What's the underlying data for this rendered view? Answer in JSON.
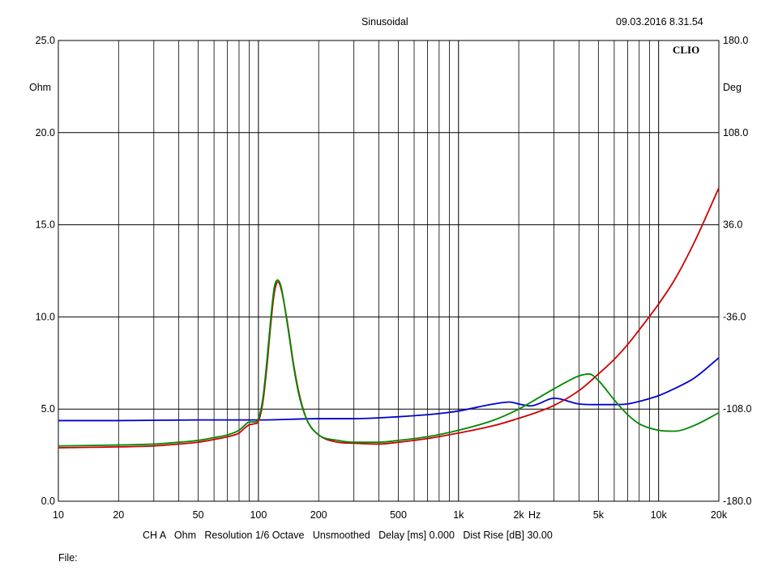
{
  "header": {
    "title": "Sinusoidal",
    "timestamp": "09.03.2016 8.31.54",
    "logo": "CLIO"
  },
  "footer": {
    "info": "CH A   Ohm   Resolution 1/6 Octave   Unsmoothed   Delay [ms] 0.000   Dist Rise [dB] 30.00",
    "file_label": "File:"
  },
  "chart_data": {
    "type": "line",
    "xscale": "log",
    "xlim": [
      10,
      20000
    ],
    "ylim_left": [
      0,
      25
    ],
    "ylim_right": [
      -180,
      180
    ],
    "grid": true,
    "x_ticks": [
      {
        "v": 10,
        "label": "10"
      },
      {
        "v": 20,
        "label": "20"
      },
      {
        "v": 50,
        "label": "50"
      },
      {
        "v": 100,
        "label": "100"
      },
      {
        "v": 200,
        "label": "200"
      },
      {
        "v": 500,
        "label": "500"
      },
      {
        "v": 1000,
        "label": "1k"
      },
      {
        "v": 2000,
        "label": "2k"
      },
      {
        "v": 5000,
        "label": "5k"
      },
      {
        "v": 10000,
        "label": "10k"
      },
      {
        "v": 20000,
        "label": "20k"
      }
    ],
    "x_unit": "Hz",
    "y_left_ticks": [
      {
        "v": 0,
        "label": "0.0"
      },
      {
        "v": 5,
        "label": "5.0"
      },
      {
        "v": 10,
        "label": "10.0"
      },
      {
        "v": 15,
        "label": "15.0"
      },
      {
        "v": 20,
        "label": "20.0"
      },
      {
        "v": 25,
        "label": "25.0"
      }
    ],
    "y_left_unit": "Ohm",
    "y_right_ticks": [
      {
        "v": -180,
        "label": "-180.0"
      },
      {
        "v": -108,
        "label": "-108.0"
      },
      {
        "v": -36,
        "label": "-36.0"
      },
      {
        "v": 36,
        "label": "36.0"
      },
      {
        "v": 108,
        "label": "108.0"
      },
      {
        "v": 180,
        "label": "180.0"
      }
    ],
    "y_right_unit": "Deg",
    "series": [
      {
        "color": "#0000cc",
        "axis": "right",
        "points": [
          [
            10,
            -117
          ],
          [
            20,
            -117
          ],
          [
            50,
            -116.5
          ],
          [
            100,
            -116.5
          ],
          [
            200,
            -115.5
          ],
          [
            300,
            -115.5
          ],
          [
            500,
            -114
          ],
          [
            800,
            -111.5
          ],
          [
            1000,
            -109.5
          ],
          [
            1500,
            -104
          ],
          [
            1800,
            -102.5
          ],
          [
            2000,
            -104
          ],
          [
            2300,
            -105.5
          ],
          [
            2500,
            -104
          ],
          [
            3000,
            -99.5
          ],
          [
            4000,
            -104
          ],
          [
            5000,
            -104.5
          ],
          [
            6000,
            -104.5
          ],
          [
            7000,
            -104
          ],
          [
            8000,
            -102
          ],
          [
            10000,
            -97.5
          ],
          [
            12000,
            -92
          ],
          [
            15000,
            -84
          ],
          [
            20000,
            -68
          ]
        ]
      },
      {
        "color": "#cc0000",
        "axis": "left",
        "points": [
          [
            10,
            2.9
          ],
          [
            20,
            2.95
          ],
          [
            30,
            3.0
          ],
          [
            40,
            3.1
          ],
          [
            50,
            3.2
          ],
          [
            60,
            3.35
          ],
          [
            70,
            3.5
          ],
          [
            80,
            3.7
          ],
          [
            85,
            3.95
          ],
          [
            90,
            4.15
          ],
          [
            95,
            4.2
          ],
          [
            100,
            4.35
          ],
          [
            105,
            5.3
          ],
          [
            110,
            7.2
          ],
          [
            115,
            9.5
          ],
          [
            120,
            11.3
          ],
          [
            125,
            11.9
          ],
          [
            130,
            11.5
          ],
          [
            140,
            9.6
          ],
          [
            150,
            7.4
          ],
          [
            160,
            5.8
          ],
          [
            175,
            4.4
          ],
          [
            200,
            3.6
          ],
          [
            250,
            3.2
          ],
          [
            300,
            3.15
          ],
          [
            400,
            3.1
          ],
          [
            500,
            3.2
          ],
          [
            700,
            3.4
          ],
          [
            1000,
            3.7
          ],
          [
            1500,
            4.1
          ],
          [
            2000,
            4.5
          ],
          [
            2500,
            4.85
          ],
          [
            3000,
            5.2
          ],
          [
            4000,
            6.0
          ],
          [
            5000,
            6.9
          ],
          [
            6000,
            7.7
          ],
          [
            7000,
            8.5
          ],
          [
            8000,
            9.3
          ],
          [
            10000,
            10.7
          ],
          [
            12000,
            12.0
          ],
          [
            15000,
            14.0
          ],
          [
            20000,
            17.0
          ]
        ]
      },
      {
        "color": "#008800",
        "axis": "left",
        "points": [
          [
            10,
            3.0
          ],
          [
            20,
            3.05
          ],
          [
            30,
            3.1
          ],
          [
            40,
            3.2
          ],
          [
            50,
            3.3
          ],
          [
            60,
            3.45
          ],
          [
            70,
            3.6
          ],
          [
            80,
            3.85
          ],
          [
            85,
            4.1
          ],
          [
            90,
            4.3
          ],
          [
            95,
            4.3
          ],
          [
            100,
            4.5
          ],
          [
            105,
            5.5
          ],
          [
            110,
            7.5
          ],
          [
            115,
            9.8
          ],
          [
            120,
            11.6
          ],
          [
            125,
            12.0
          ],
          [
            130,
            11.6
          ],
          [
            140,
            9.5
          ],
          [
            150,
            7.3
          ],
          [
            160,
            5.7
          ],
          [
            175,
            4.4
          ],
          [
            200,
            3.6
          ],
          [
            250,
            3.3
          ],
          [
            300,
            3.2
          ],
          [
            400,
            3.2
          ],
          [
            500,
            3.3
          ],
          [
            700,
            3.5
          ],
          [
            1000,
            3.85
          ],
          [
            1500,
            4.4
          ],
          [
            2000,
            5.0
          ],
          [
            2500,
            5.6
          ],
          [
            3000,
            6.1
          ],
          [
            3500,
            6.5
          ],
          [
            4000,
            6.8
          ],
          [
            4500,
            6.9
          ],
          [
            5000,
            6.55
          ],
          [
            6000,
            5.5
          ],
          [
            7000,
            4.7
          ],
          [
            8000,
            4.2
          ],
          [
            10000,
            3.85
          ],
          [
            12000,
            3.8
          ],
          [
            15000,
            4.1
          ],
          [
            20000,
            4.8
          ]
        ]
      }
    ]
  }
}
